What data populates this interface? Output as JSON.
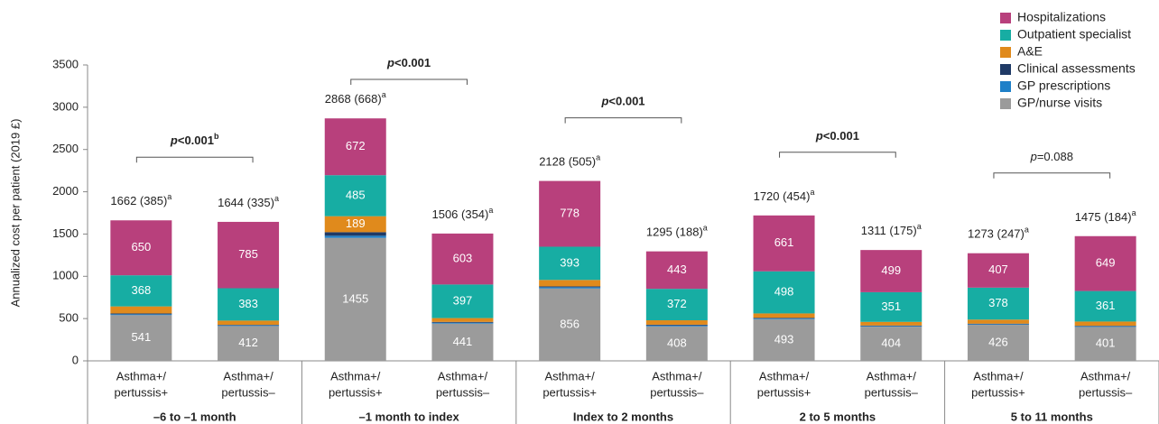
{
  "chart_data": {
    "type": "stacked-bar",
    "y_label": "Annualized cost per patient (2019 £)",
    "ylim": [
      0,
      3500
    ],
    "yticks": [
      0,
      500,
      1000,
      1500,
      2000,
      2500,
      3000,
      3500
    ],
    "categories": [
      [
        "Asthma+/",
        "pertussis+"
      ],
      [
        "Asthma+/",
        "pertussis–"
      ],
      [
        "Asthma+/",
        "pertussis+"
      ],
      [
        "Asthma+/",
        "pertussis–"
      ],
      [
        "Asthma+/",
        "pertussis+"
      ],
      [
        "Asthma+/",
        "pertussis–"
      ],
      [
        "Asthma+/",
        "pertussis+"
      ],
      [
        "Asthma+/",
        "pertussis–"
      ],
      [
        "Asthma+/",
        "pertussis+"
      ],
      [
        "Asthma+/",
        "pertussis–"
      ]
    ],
    "totals": [
      {
        "text": "1662 (385)",
        "sup": "a"
      },
      {
        "text": "1644 (335)",
        "sup": "a"
      },
      {
        "text": "2868 (668)",
        "sup": "a"
      },
      {
        "text": "1506 (354)",
        "sup": "a"
      },
      {
        "text": "2128 (505)",
        "sup": "a"
      },
      {
        "text": "1295 (188)",
        "sup": "a"
      },
      {
        "text": "1720 (454)",
        "sup": "a"
      },
      {
        "text": "1311 (175)",
        "sup": "a"
      },
      {
        "text": "1273 (247)",
        "sup": "a"
      },
      {
        "text": "1475 (184)",
        "sup": "a"
      }
    ],
    "groups": [
      {
        "label": "–6 to –1 month",
        "p": {
          "symbol": "p",
          "text": "<0.001",
          "sup": "b",
          "bold": true
        }
      },
      {
        "label": "–1 month to index",
        "p": {
          "symbol": "p",
          "text": "<0.001",
          "bold": true
        }
      },
      {
        "label": "Index to 2 months",
        "p": {
          "symbol": "p",
          "text": "<0.001",
          "bold": true
        }
      },
      {
        "label": "2 to 5 months",
        "p": {
          "symbol": "p",
          "text": "<0.001",
          "bold": true
        }
      },
      {
        "label": "5 to 11 months",
        "p": {
          "symbol": "p",
          "text": "=0.088",
          "bold": false
        }
      }
    ],
    "series": [
      {
        "name": "GP/nurse visits",
        "color": "#9b9b9b",
        "labels": true,
        "values": [
          541,
          412,
          1455,
          441,
          856,
          408,
          493,
          404,
          426,
          401
        ]
      },
      {
        "name": "GP prescriptions",
        "color": "#1f80c8",
        "values": [
          10,
          8,
          25,
          10,
          15,
          10,
          8,
          8,
          8,
          8
        ]
      },
      {
        "name": "Clinical assessments",
        "color": "#1f3a66",
        "values": [
          10,
          6,
          42,
          10,
          10,
          10,
          8,
          6,
          6,
          6
        ]
      },
      {
        "name": "A&E",
        "color": "#e08a1c",
        "values": [
          83,
          50,
          189,
          45,
          76,
          52,
          52,
          43,
          48,
          50
        ],
        "value_labels": [
          null,
          null,
          "189",
          null,
          null,
          null,
          null,
          null,
          null,
          null
        ]
      },
      {
        "name": "Outpatient specialist",
        "color": "#17ada3",
        "labels": true,
        "values": [
          368,
          383,
          485,
          397,
          393,
          372,
          498,
          351,
          378,
          361
        ]
      },
      {
        "name": "Hospitalizations",
        "color": "#b8407c",
        "labels": true,
        "values": [
          650,
          785,
          672,
          603,
          778,
          443,
          661,
          499,
          407,
          649
        ]
      }
    ]
  }
}
